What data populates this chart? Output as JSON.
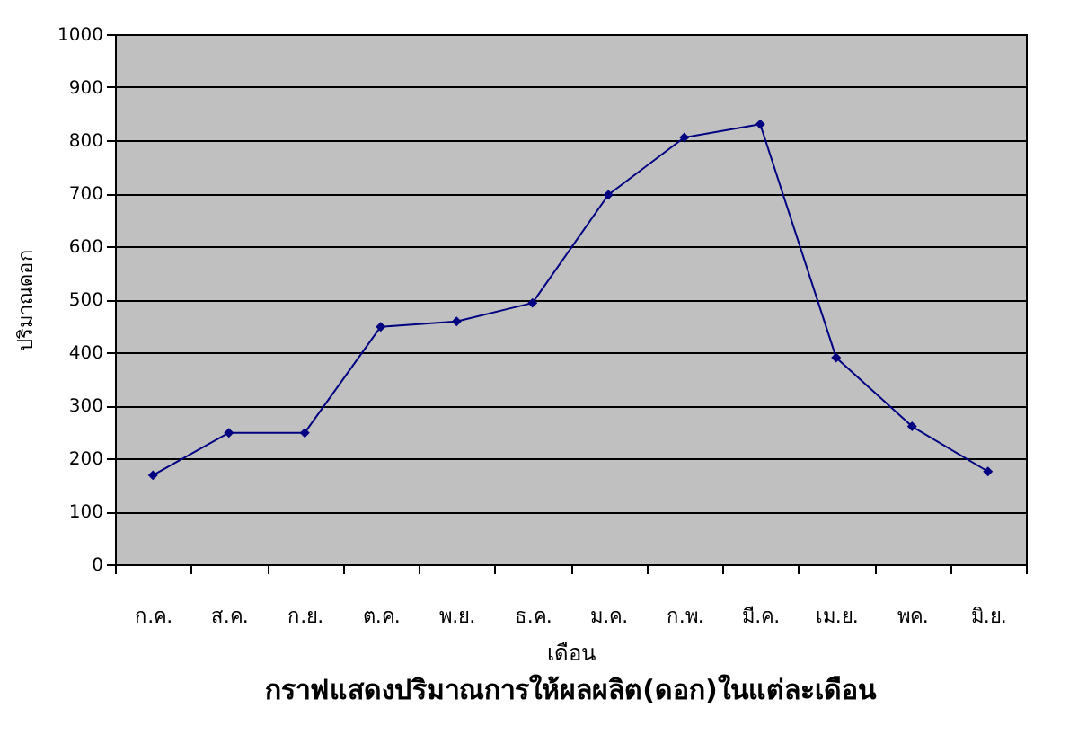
{
  "chart_data": {
    "type": "line",
    "title": "กราฟแสดงปริมาณการให้ผลผลิต(ดอก)ในแต่ละเดือน",
    "xlabel": "เดือน",
    "ylabel": "ปริมาณดอก",
    "categories": [
      "ก.ค.",
      "ส.ค.",
      "ก.ย.",
      "ต.ค.",
      "พ.ย.",
      "ธ.ค.",
      "ม.ค.",
      "ก.พ.",
      "มี.ค.",
      "เม.ย.",
      "พค.",
      "มิ.ย."
    ],
    "series": [
      {
        "color": "#000080",
        "values": [
          168,
          248,
          248,
          448,
          458,
          493,
          697,
          805,
          830,
          390,
          260,
          175
        ]
      }
    ],
    "ylim": [
      0,
      1000
    ],
    "yticks": [
      0,
      100,
      200,
      300,
      400,
      500,
      600,
      700,
      800,
      900,
      1000
    ],
    "grid": "y",
    "marker": "diamond",
    "line_style": "solid"
  }
}
